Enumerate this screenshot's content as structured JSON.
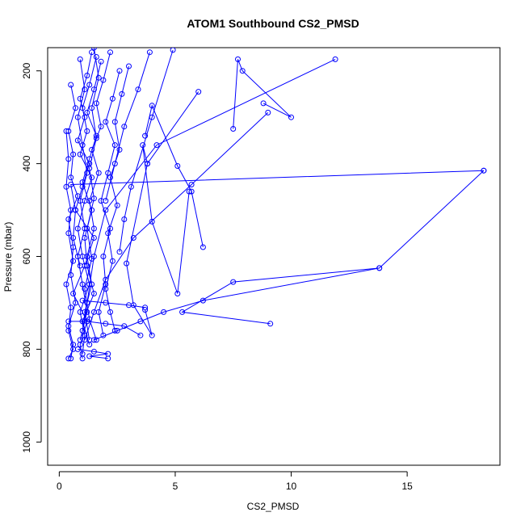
{
  "chart_data": {
    "type": "line",
    "title": "ATOM1 Southbound CS2_PMSD",
    "xlabel": "CS2_PMSD",
    "ylabel": "Pressure (mbar)",
    "xlim": [
      -0.5,
      19.0
    ],
    "ylim": [
      1050,
      150
    ],
    "y_reversed": true,
    "x_ticks": [
      0,
      5,
      10,
      15
    ],
    "y_ticks": [
      200,
      400,
      600,
      800,
      1000
    ],
    "grid": false,
    "legend": "none",
    "series_color": "#0000ff",
    "marker": "open-circle",
    "series": [
      {
        "x": [
          1.4,
          1.2,
          0.9,
          1.1,
          0.8,
          1.3,
          1.0,
          0.7,
          1.5,
          1.1,
          0.6,
          1.2,
          0.9,
          1.0
        ],
        "y": [
          160,
          210,
          260,
          300,
          350,
          400,
          450,
          500,
          560,
          620,
          680,
          740,
          790,
          820
        ]
      },
      {
        "x": [
          1.6,
          1.3,
          1.0,
          1.2,
          0.9,
          1.4,
          1.1,
          0.8,
          1.0,
          1.3,
          0.9,
          1.1,
          1.0
        ],
        "y": [
          170,
          230,
          280,
          330,
          380,
          430,
          480,
          540,
          600,
          660,
          720,
          770,
          810
        ]
      },
      {
        "x": [
          1.8,
          1.5,
          1.2,
          1.6,
          1.3,
          1.0,
          1.4,
          1.1,
          1.2,
          1.5,
          1.0,
          1.3
        ],
        "y": [
          180,
          240,
          290,
          340,
          390,
          440,
          500,
          560,
          620,
          680,
          740,
          790
        ]
      },
      {
        "x": [
          0.5,
          0.7,
          0.4,
          0.6,
          0.5,
          0.8,
          0.4,
          0.6,
          0.5,
          0.7,
          0.4,
          0.6,
          0.5
        ],
        "y": [
          230,
          280,
          330,
          380,
          430,
          470,
          520,
          580,
          640,
          700,
          750,
          790,
          820
        ]
      },
      {
        "x": [
          2.2,
          1.9,
          1.6,
          1.8,
          1.4,
          1.7,
          1.3,
          1.5,
          1.2,
          1.4,
          1.1,
          1.3
        ],
        "y": [
          160,
          220,
          270,
          320,
          370,
          420,
          480,
          540,
          600,
          660,
          720,
          780
        ]
      },
      {
        "x": [
          0.3,
          0.4,
          0.3,
          0.5,
          0.4,
          0.6,
          0.3,
          0.5,
          0.4,
          0.6,
          0.4
        ],
        "y": [
          330,
          390,
          450,
          500,
          550,
          610,
          660,
          710,
          760,
          800,
          820
        ]
      },
      {
        "x": [
          2.6,
          2.3,
          2.0,
          2.4,
          2.1,
          1.8,
          2.2,
          1.9,
          2.0,
          1.7,
          1.9
        ],
        "y": [
          200,
          260,
          310,
          360,
          420,
          480,
          540,
          600,
          660,
          720,
          770
        ]
      },
      {
        "x": [
          3.0,
          2.7,
          2.4,
          2.6,
          2.2,
          2.5,
          2.1,
          2.3,
          2.0,
          2.2,
          2.4
        ],
        "y": [
          190,
          250,
          310,
          370,
          430,
          490,
          550,
          610,
          670,
          720,
          760
        ]
      },
      {
        "x": [
          0.9,
          1.1,
          0.8,
          1.0,
          1.2,
          0.9,
          1.1,
          0.8,
          1.0,
          1.2,
          0.9
        ],
        "y": [
          175,
          240,
          300,
          360,
          420,
          480,
          540,
          600,
          660,
          720,
          780
        ]
      },
      {
        "x": [
          1.5,
          1.7,
          1.4,
          1.6,
          1.3,
          1.5,
          1.2,
          1.4,
          1.1,
          1.3,
          1.6
        ],
        "y": [
          150,
          215,
          280,
          345,
          410,
          475,
          540,
          605,
          670,
          735,
          780
        ]
      },
      {
        "x": [
          11.9,
          4.2,
          2.0,
          1.5,
          1.2,
          1.0
        ],
        "y": [
          175,
          360,
          500,
          600,
          700,
          760
        ]
      },
      {
        "x": [
          9.0,
          5.7,
          3.2,
          2.0,
          1.5,
          1.1
        ],
        "y": [
          290,
          445,
          560,
          650,
          720,
          780
        ]
      },
      {
        "x": [
          18.3,
          0.5,
          0.7,
          0.6,
          0.9
        ],
        "y": [
          415,
          445,
          500,
          560,
          620
        ]
      },
      {
        "x": [
          13.8,
          6.2,
          4.5,
          3.5,
          2.5,
          1.5
        ],
        "y": [
          625,
          695,
          720,
          740,
          760,
          780
        ]
      },
      {
        "x": [
          9.1,
          5.3,
          7.5,
          13.8,
          18.3
        ],
        "y": [
          745,
          720,
          655,
          625,
          415
        ]
      },
      {
        "x": [
          8.8,
          10.0,
          7.9,
          7.7,
          7.5
        ],
        "y": [
          270,
          300,
          200,
          175,
          325
        ]
      },
      {
        "x": [
          5.6,
          5.1,
          4.0,
          3.6,
          3.8
        ],
        "y": [
          460,
          680,
          525,
          360,
          400
        ]
      },
      {
        "x": [
          6.2,
          5.7,
          5.1,
          4.0,
          3.7
        ],
        "y": [
          580,
          460,
          405,
          275,
          340
        ]
      },
      {
        "x": [
          6.0,
          3.8,
          2.9,
          3.2,
          4.0,
          3.7
        ],
        "y": [
          245,
          400,
          615,
          705,
          770,
          715
        ]
      },
      {
        "x": [
          1.0,
          2.0,
          3.0,
          3.7
        ],
        "y": [
          695,
          700,
          705,
          710
        ]
      },
      {
        "x": [
          0.4,
          1.2,
          2.0,
          2.8,
          3.5
        ],
        "y": [
          740,
          740,
          745,
          750,
          770
        ]
      },
      {
        "x": [
          0.8,
          1.5,
          2.1,
          1.3,
          2.1
        ],
        "y": [
          800,
          805,
          810,
          815,
          820
        ]
      },
      {
        "x": [
          4.9,
          4.0,
          3.1,
          2.8,
          2.6
        ],
        "y": [
          155,
          300,
          450,
          520,
          590
        ]
      },
      {
        "x": [
          3.9,
          3.4,
          2.8,
          2.4,
          2.0
        ],
        "y": [
          160,
          240,
          320,
          400,
          480
        ]
      }
    ]
  }
}
